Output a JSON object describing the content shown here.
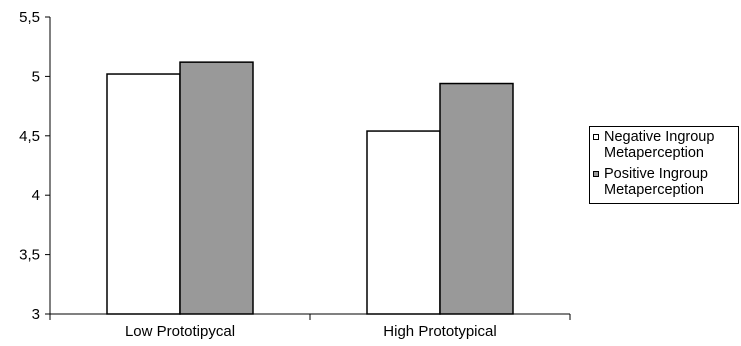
{
  "chart_data": {
    "type": "bar",
    "title": "",
    "xlabel": "",
    "ylabel": "",
    "categories": [
      "Low Prototipycal",
      "High Prototypical"
    ],
    "series": [
      {
        "name": "Negative Ingroup\nMetaperception",
        "values": [
          5.02,
          4.54
        ],
        "color": "#ffffff"
      },
      {
        "name": "Positive Ingroup\nMetaperception",
        "values": [
          5.12,
          4.94
        ],
        "color": "#999999"
      }
    ],
    "ylim": [
      3,
      5.5
    ],
    "yticks": [
      "3",
      "3,5",
      "4",
      "4,5",
      "5",
      "5,5"
    ],
    "grid": false,
    "legend_position": "right"
  }
}
